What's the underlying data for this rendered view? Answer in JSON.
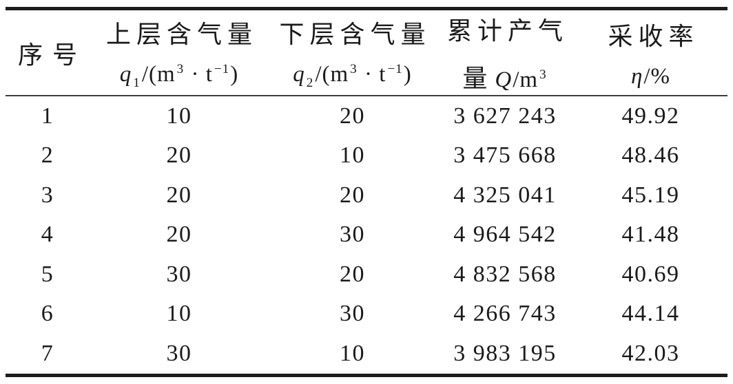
{
  "page": {
    "background": "#ffffff",
    "text_color": "#1a1a1a",
    "rule_color": "#1c1c1c"
  },
  "table": {
    "header": {
      "col1": {
        "title": "序号"
      },
      "col2": {
        "title": "上层含气量",
        "var": "q",
        "sub": "1",
        "unit_open": "/(m",
        "sup_m": "3",
        "unit_mid": " · t",
        "sup_t": "−1",
        "unit_close": ")"
      },
      "col3": {
        "title": "下层含气量",
        "var": "q",
        "sub": "2",
        "unit_open": "/(m",
        "sup_m": "3",
        "unit_mid": " · t",
        "sup_t": "−1",
        "unit_close": ")"
      },
      "col4": {
        "title_line1": "累计产气",
        "title_line2_prefix": "量",
        "var": "Q",
        "unit": "/m",
        "sup": "3"
      },
      "col5": {
        "title": "采收率",
        "var": "η",
        "unit": "/%"
      }
    },
    "rows": [
      {
        "no": "1",
        "q1": "10",
        "q2": "20",
        "cumulative": "3 627 243",
        "recovery": "49.92"
      },
      {
        "no": "2",
        "q1": "20",
        "q2": "10",
        "cumulative": "3 475 668",
        "recovery": "48.46"
      },
      {
        "no": "3",
        "q1": "20",
        "q2": "20",
        "cumulative": "4 325 041",
        "recovery": "45.19"
      },
      {
        "no": "4",
        "q1": "20",
        "q2": "30",
        "cumulative": "4 964 542",
        "recovery": "41.48"
      },
      {
        "no": "5",
        "q1": "30",
        "q2": "20",
        "cumulative": "4 832 568",
        "recovery": "40.69"
      },
      {
        "no": "6",
        "q1": "10",
        "q2": "30",
        "cumulative": "4 266 743",
        "recovery": "44.14"
      },
      {
        "no": "7",
        "q1": "30",
        "q2": "10",
        "cumulative": "3 983 195",
        "recovery": "42.03"
      }
    ]
  }
}
